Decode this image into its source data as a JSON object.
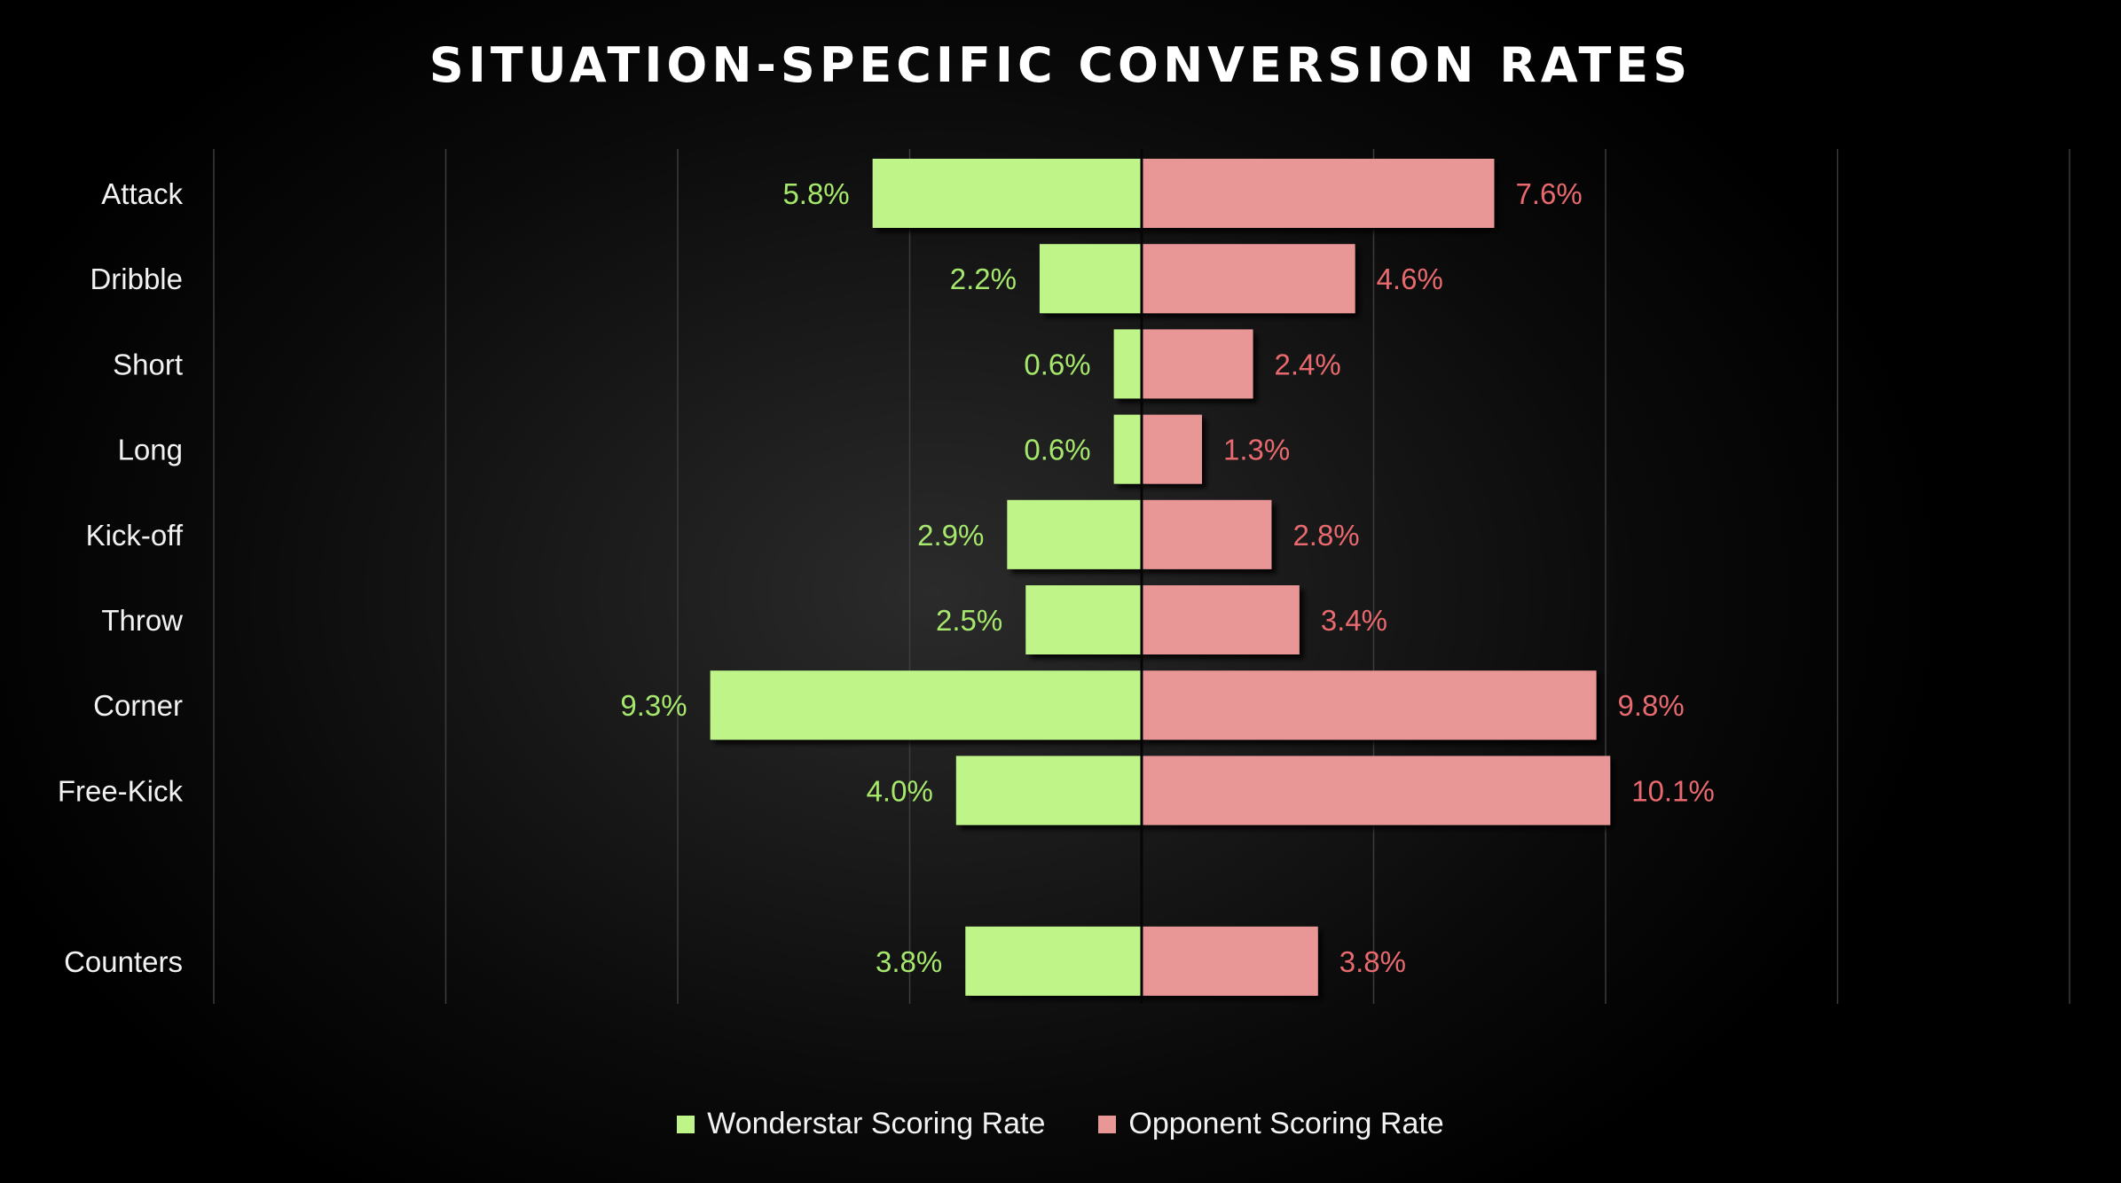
{
  "chart_data": {
    "type": "bar",
    "orientation": "horizontal-diverging",
    "title": "SITUATION-SPECIFIC CONVERSION RATES",
    "categories": [
      "Attack",
      "Dribble",
      "Short",
      "Long",
      "Kick-off",
      "Throw",
      "Corner",
      "Free-Kick",
      "",
      "Counters"
    ],
    "series": [
      {
        "name": "Wonderstar Scoring Rate",
        "side": "left",
        "color": "#bff488",
        "label_color": "#a6e86c",
        "values": [
          5.8,
          2.2,
          0.6,
          0.6,
          2.9,
          2.5,
          9.3,
          4.0,
          null,
          3.8
        ],
        "labels": [
          "5.8%",
          "2.2%",
          "0.6%",
          "0.6%",
          "2.9%",
          "2.5%",
          "9.3%",
          "4.0%",
          "",
          "3.8%"
        ]
      },
      {
        "name": "Opponent Scoring Rate",
        "side": "right",
        "color": "#e89696",
        "label_color": "#e8696e",
        "values": [
          7.6,
          4.6,
          2.4,
          1.3,
          2.8,
          3.4,
          9.8,
          10.1,
          null,
          3.8
        ],
        "labels": [
          "7.6%",
          "4.6%",
          "2.4%",
          "1.3%",
          "2.8%",
          "3.4%",
          "9.8%",
          "10.1%",
          "",
          "3.8%"
        ]
      }
    ],
    "xlim": [
      -20,
      20
    ],
    "grid": true,
    "legend": "bottom"
  }
}
